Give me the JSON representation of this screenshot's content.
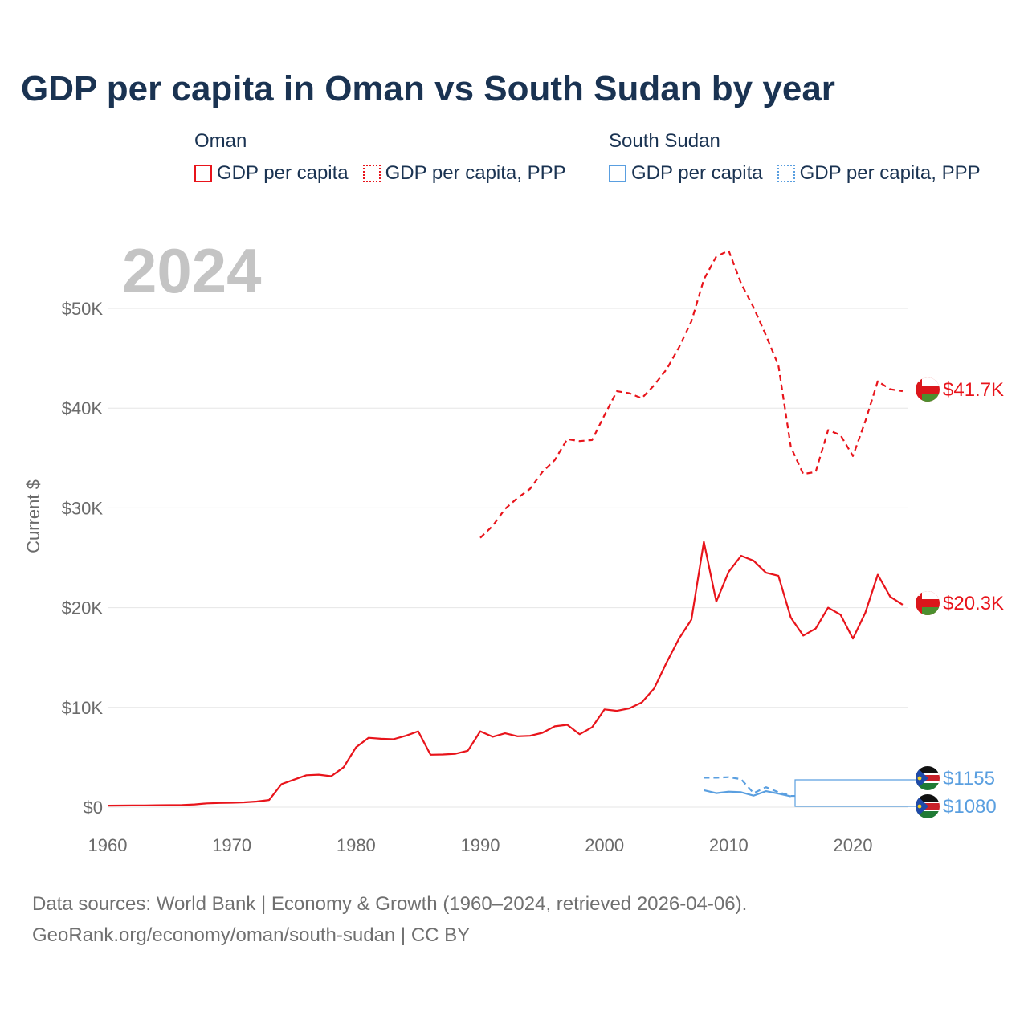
{
  "chart_data": {
    "type": "line",
    "title": "GDP per capita in Oman vs South Sudan by year",
    "ylabel": "Current $",
    "xlabel": "",
    "year_label": "2024",
    "xlim": [
      1960,
      2025
    ],
    "ylim": [
      0,
      56000
    ],
    "x_ticks": [
      1960,
      1970,
      1980,
      1990,
      2000,
      2010,
      2020
    ],
    "x_tick_labels": [
      "1960",
      "1970",
      "1980",
      "1990",
      "2000",
      "2010",
      "2020"
    ],
    "y_ticks": [
      0,
      10000,
      20000,
      30000,
      40000,
      50000
    ],
    "y_tick_labels": [
      "$0",
      "$10K",
      "$20K",
      "$30K",
      "$40K",
      "$50K"
    ],
    "grid": true,
    "legend": {
      "placement": "top",
      "groups": [
        {
          "name": "Oman",
          "items": [
            "GDP per capita",
            "GDP per capita, PPP"
          ]
        },
        {
          "name": "South Sudan",
          "items": [
            "GDP per capita",
            "GDP per capita, PPP"
          ]
        }
      ]
    },
    "series": [
      {
        "name": "Oman GDP per capita",
        "country": "Oman",
        "style": "solid",
        "color": "#e8141b",
        "end_label": "$20.3K",
        "points": [
          [
            1960,
            150
          ],
          [
            1961,
            160
          ],
          [
            1962,
            170
          ],
          [
            1963,
            180
          ],
          [
            1964,
            190
          ],
          [
            1965,
            200
          ],
          [
            1966,
            220
          ],
          [
            1967,
            270
          ],
          [
            1968,
            380
          ],
          [
            1969,
            420
          ],
          [
            1970,
            440
          ],
          [
            1971,
            480
          ],
          [
            1972,
            560
          ],
          [
            1973,
            720
          ],
          [
            1974,
            2300
          ],
          [
            1975,
            2750
          ],
          [
            1976,
            3200
          ],
          [
            1977,
            3250
          ],
          [
            1978,
            3100
          ],
          [
            1979,
            4000
          ],
          [
            1980,
            6000
          ],
          [
            1981,
            6950
          ],
          [
            1982,
            6850
          ],
          [
            1983,
            6800
          ],
          [
            1984,
            7150
          ],
          [
            1985,
            7600
          ],
          [
            1986,
            5250
          ],
          [
            1987,
            5270
          ],
          [
            1988,
            5350
          ],
          [
            1989,
            5650
          ],
          [
            1990,
            7600
          ],
          [
            1991,
            7050
          ],
          [
            1992,
            7400
          ],
          [
            1993,
            7100
          ],
          [
            1994,
            7150
          ],
          [
            1995,
            7450
          ],
          [
            1996,
            8100
          ],
          [
            1997,
            8250
          ],
          [
            1998,
            7300
          ],
          [
            1999,
            8000
          ],
          [
            2000,
            9800
          ],
          [
            2001,
            9650
          ],
          [
            2002,
            9900
          ],
          [
            2003,
            10500
          ],
          [
            2004,
            11900
          ],
          [
            2005,
            14500
          ],
          [
            2006,
            16900
          ],
          [
            2007,
            18800
          ],
          [
            2008,
            26600
          ],
          [
            2009,
            20600
          ],
          [
            2010,
            23600
          ],
          [
            2011,
            25200
          ],
          [
            2012,
            24700
          ],
          [
            2013,
            23500
          ],
          [
            2014,
            23200
          ],
          [
            2015,
            19000
          ],
          [
            2016,
            17200
          ],
          [
            2017,
            17900
          ],
          [
            2018,
            20000
          ],
          [
            2019,
            19300
          ],
          [
            2020,
            16900
          ],
          [
            2021,
            19500
          ],
          [
            2022,
            23300
          ],
          [
            2023,
            21100
          ],
          [
            2024,
            20300
          ]
        ]
      },
      {
        "name": "Oman GDP per capita, PPP",
        "country": "Oman",
        "style": "dashed",
        "color": "#e8141b",
        "end_label": "$41.7K",
        "points": [
          [
            1990,
            27000
          ],
          [
            1991,
            28200
          ],
          [
            1992,
            29900
          ],
          [
            1993,
            31000
          ],
          [
            1994,
            31900
          ],
          [
            1995,
            33600
          ],
          [
            1996,
            34800
          ],
          [
            1997,
            36900
          ],
          [
            1998,
            36700
          ],
          [
            1999,
            36800
          ],
          [
            2000,
            39300
          ],
          [
            2001,
            41700
          ],
          [
            2002,
            41500
          ],
          [
            2003,
            41000
          ],
          [
            2004,
            42300
          ],
          [
            2005,
            43900
          ],
          [
            2006,
            46100
          ],
          [
            2007,
            48700
          ],
          [
            2008,
            52900
          ],
          [
            2009,
            55200
          ],
          [
            2010,
            55800
          ],
          [
            2011,
            52500
          ],
          [
            2012,
            50100
          ],
          [
            2013,
            47300
          ],
          [
            2014,
            44300
          ],
          [
            2015,
            36100
          ],
          [
            2016,
            33400
          ],
          [
            2017,
            33600
          ],
          [
            2018,
            37800
          ],
          [
            2019,
            37300
          ],
          [
            2020,
            35200
          ],
          [
            2021,
            38700
          ],
          [
            2022,
            42700
          ],
          [
            2023,
            41900
          ],
          [
            2024,
            41700
          ]
        ]
      },
      {
        "name": "South Sudan GDP per capita",
        "country": "South Sudan",
        "style": "solid",
        "color": "#5a9fe0",
        "end_label": "$1080",
        "points": [
          [
            2008,
            1700
          ],
          [
            2009,
            1400
          ],
          [
            2010,
            1550
          ],
          [
            2011,
            1500
          ],
          [
            2012,
            1150
          ],
          [
            2013,
            1600
          ],
          [
            2014,
            1350
          ],
          [
            2015,
            1080
          ]
        ]
      },
      {
        "name": "South Sudan GDP per capita, PPP",
        "country": "South Sudan",
        "style": "dashed",
        "color": "#5a9fe0",
        "end_label": "$1155",
        "points": [
          [
            2008,
            2950
          ],
          [
            2009,
            2950
          ],
          [
            2010,
            3000
          ],
          [
            2011,
            2800
          ],
          [
            2012,
            1400
          ],
          [
            2013,
            2000
          ],
          [
            2014,
            1500
          ],
          [
            2015,
            1155
          ]
        ]
      }
    ]
  },
  "source": {
    "line1": "Data sources: World Bank | Economy & Growth (1960–2024, retrieved 2026-04-06).",
    "line2": "GeoRank.org/economy/oman/south-sudan | CC BY"
  },
  "colors": {
    "oman": "#e8141b",
    "south_sudan": "#5a9fe0",
    "title": "#1a3352",
    "axis_text": "#6b6b6b",
    "grid": "#e6e6e6"
  }
}
